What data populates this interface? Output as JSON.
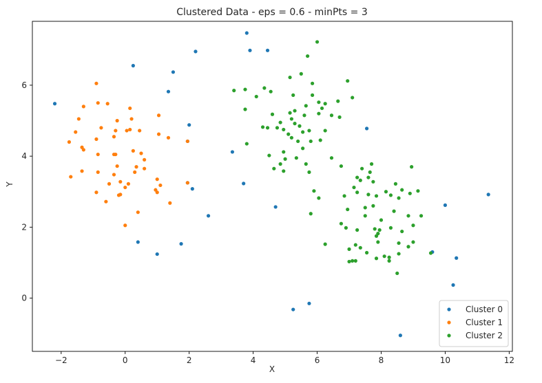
{
  "chart_data": {
    "type": "scatter",
    "title": "Clustered Data - eps = 0.6 - minPts = 3",
    "xlabel": "X",
    "ylabel": "Y",
    "xlim": [
      -2.9,
      12.1
    ],
    "ylim": [
      -1.5,
      7.8
    ],
    "xticks": [
      -2,
      0,
      2,
      4,
      6,
      8,
      10,
      12
    ],
    "yticks": [
      0,
      2,
      4,
      6
    ],
    "grid": false,
    "legend_position": "bottom-right",
    "series": [
      {
        "name": "Cluster 0",
        "color": "#1f77b4",
        "points": [
          [
            -2.2,
            5.48
          ],
          [
            0.25,
            6.55
          ],
          [
            1.5,
            6.37
          ],
          [
            2.2,
            6.95
          ],
          [
            1.35,
            5.82
          ],
          [
            2.0,
            4.88
          ],
          [
            1.95,
            4.42
          ],
          [
            1.95,
            3.25
          ],
          [
            2.1,
            3.08
          ],
          [
            2.6,
            2.32
          ],
          [
            1.75,
            1.53
          ],
          [
            1.0,
            1.24
          ],
          [
            0.4,
            1.58
          ],
          [
            3.35,
            4.12
          ],
          [
            3.7,
            3.23
          ],
          [
            3.8,
            7.47
          ],
          [
            3.9,
            6.98
          ],
          [
            4.45,
            6.98
          ],
          [
            4.7,
            2.57
          ],
          [
            5.25,
            -0.32
          ],
          [
            5.75,
            -0.15
          ],
          [
            7.55,
            4.78
          ],
          [
            8.6,
            -1.05
          ],
          [
            9.6,
            1.3
          ],
          [
            10.0,
            2.62
          ],
          [
            10.25,
            0.37
          ],
          [
            10.35,
            1.13
          ],
          [
            11.35,
            2.92
          ]
        ]
      },
      {
        "name": "Cluster 1",
        "color": "#ff7f0e",
        "points": [
          [
            -0.9,
            6.05
          ],
          [
            -1.3,
            5.4
          ],
          [
            -0.85,
            5.5
          ],
          [
            -0.55,
            5.48
          ],
          [
            -1.45,
            5.05
          ],
          [
            0.15,
            5.35
          ],
          [
            -0.25,
            5.0
          ],
          [
            0.2,
            5.05
          ],
          [
            -0.3,
            4.72
          ],
          [
            0.05,
            4.72
          ],
          [
            0.15,
            4.75
          ],
          [
            0.45,
            4.72
          ],
          [
            -0.75,
            4.8
          ],
          [
            -1.55,
            4.68
          ],
          [
            -1.75,
            4.4
          ],
          [
            -0.9,
            4.48
          ],
          [
            -0.35,
            4.55
          ],
          [
            -1.35,
            4.25
          ],
          [
            -1.3,
            4.18
          ],
          [
            -0.85,
            4.05
          ],
          [
            -0.35,
            4.05
          ],
          [
            -0.3,
            4.05
          ],
          [
            0.25,
            4.15
          ],
          [
            0.5,
            4.08
          ],
          [
            0.6,
            3.9
          ],
          [
            -0.25,
            3.72
          ],
          [
            0.35,
            3.7
          ],
          [
            0.6,
            3.65
          ],
          [
            0.3,
            3.55
          ],
          [
            -0.85,
            3.55
          ],
          [
            -1.35,
            3.58
          ],
          [
            -0.35,
            3.48
          ],
          [
            -1.7,
            3.42
          ],
          [
            -0.15,
            3.28
          ],
          [
            0.1,
            3.22
          ],
          [
            -0.5,
            3.22
          ],
          [
            0.0,
            3.12
          ],
          [
            1.1,
            3.18
          ],
          [
            0.95,
            3.05
          ],
          [
            1.0,
            2.98
          ],
          [
            -0.9,
            2.98
          ],
          [
            -0.15,
            2.92
          ],
          [
            -0.2,
            2.9
          ],
          [
            1.35,
            4.52
          ],
          [
            1.05,
            5.15
          ],
          [
            1.05,
            4.62
          ],
          [
            1.0,
            3.35
          ],
          [
            -0.6,
            2.72
          ],
          [
            0.4,
            2.42
          ],
          [
            1.4,
            2.68
          ],
          [
            1.95,
            4.42
          ],
          [
            1.95,
            3.25
          ],
          [
            0.0,
            2.05
          ]
        ]
      },
      {
        "name": "Cluster 2",
        "color": "#2ca02c",
        "points": [
          [
            6.0,
            7.22
          ],
          [
            5.7,
            6.82
          ],
          [
            5.5,
            6.32
          ],
          [
            5.15,
            6.22
          ],
          [
            5.85,
            6.05
          ],
          [
            6.95,
            6.12
          ],
          [
            3.4,
            5.85
          ],
          [
            3.75,
            5.88
          ],
          [
            4.35,
            5.92
          ],
          [
            4.55,
            5.82
          ],
          [
            4.1,
            5.68
          ],
          [
            5.25,
            5.72
          ],
          [
            5.85,
            5.72
          ],
          [
            6.05,
            5.52
          ],
          [
            6.25,
            5.48
          ],
          [
            6.65,
            5.55
          ],
          [
            7.1,
            5.65
          ],
          [
            3.75,
            5.32
          ],
          [
            4.6,
            5.18
          ],
          [
            5.15,
            5.22
          ],
          [
            5.3,
            5.28
          ],
          [
            5.65,
            5.42
          ],
          [
            6.15,
            5.35
          ],
          [
            5.2,
            5.05
          ],
          [
            5.6,
            5.15
          ],
          [
            6.05,
            5.2
          ],
          [
            6.45,
            5.15
          ],
          [
            6.7,
            5.1
          ],
          [
            4.3,
            4.82
          ],
          [
            4.45,
            4.8
          ],
          [
            4.75,
            4.8
          ],
          [
            4.85,
            4.95
          ],
          [
            5.3,
            4.92
          ],
          [
            5.45,
            4.85
          ],
          [
            5.75,
            4.72
          ],
          [
            4.95,
            4.75
          ],
          [
            5.1,
            4.62
          ],
          [
            5.55,
            4.68
          ],
          [
            6.25,
            4.72
          ],
          [
            5.2,
            4.52
          ],
          [
            5.4,
            4.42
          ],
          [
            5.8,
            4.42
          ],
          [
            6.1,
            4.45
          ],
          [
            3.8,
            4.35
          ],
          [
            4.5,
            4.02
          ],
          [
            4.95,
            4.12
          ],
          [
            5.55,
            4.22
          ],
          [
            5.0,
            3.92
          ],
          [
            5.35,
            3.95
          ],
          [
            6.45,
            3.95
          ],
          [
            4.65,
            3.65
          ],
          [
            4.85,
            3.78
          ],
          [
            5.65,
            3.78
          ],
          [
            7.4,
            3.65
          ],
          [
            7.25,
            3.4
          ],
          [
            4.95,
            3.58
          ],
          [
            5.75,
            3.55
          ],
          [
            6.75,
            3.72
          ],
          [
            5.9,
            3.02
          ],
          [
            7.7,
            3.78
          ],
          [
            7.65,
            3.55
          ],
          [
            6.05,
            2.82
          ],
          [
            6.85,
            2.88
          ],
          [
            7.15,
            3.12
          ],
          [
            7.35,
            3.32
          ],
          [
            7.6,
            3.4
          ],
          [
            7.75,
            3.28
          ],
          [
            8.15,
            3.0
          ],
          [
            8.45,
            3.22
          ],
          [
            8.65,
            3.05
          ],
          [
            8.95,
            3.7
          ],
          [
            9.15,
            3.02
          ],
          [
            5.8,
            2.38
          ],
          [
            6.95,
            2.5
          ],
          [
            7.25,
            2.98
          ],
          [
            7.6,
            2.92
          ],
          [
            7.85,
            2.88
          ],
          [
            8.3,
            2.9
          ],
          [
            8.55,
            2.82
          ],
          [
            8.9,
            2.95
          ],
          [
            7.5,
            2.55
          ],
          [
            7.75,
            2.6
          ],
          [
            8.4,
            2.45
          ],
          [
            8.85,
            2.32
          ],
          [
            6.75,
            2.1
          ],
          [
            7.5,
            2.32
          ],
          [
            8.0,
            2.2
          ],
          [
            9.25,
            2.32
          ],
          [
            6.9,
            1.98
          ],
          [
            7.25,
            1.92
          ],
          [
            7.8,
            1.95
          ],
          [
            7.9,
            1.82
          ],
          [
            8.3,
            1.98
          ],
          [
            8.65,
            1.88
          ],
          [
            9.0,
            2.05
          ],
          [
            6.25,
            1.52
          ],
          [
            7.0,
            1.38
          ],
          [
            7.2,
            1.5
          ],
          [
            7.85,
            1.75
          ],
          [
            7.9,
            1.58
          ],
          [
            7.95,
            1.92
          ],
          [
            8.55,
            1.55
          ],
          [
            8.85,
            1.45
          ],
          [
            9.0,
            1.58
          ],
          [
            7.35,
            1.42
          ],
          [
            7.55,
            1.28
          ],
          [
            7.85,
            1.12
          ],
          [
            8.1,
            1.18
          ],
          [
            8.25,
            1.15
          ],
          [
            8.55,
            1.25
          ],
          [
            9.55,
            1.27
          ],
          [
            7.0,
            1.03
          ],
          [
            7.1,
            1.05
          ],
          [
            7.2,
            1.05
          ],
          [
            8.25,
            1.05
          ],
          [
            8.5,
            0.7
          ]
        ]
      }
    ]
  }
}
